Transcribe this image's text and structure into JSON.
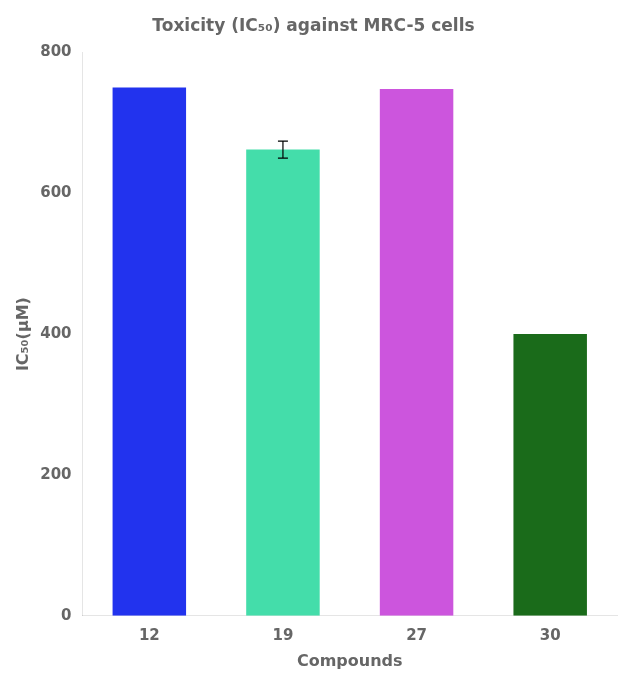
{
  "chart_data": {
    "type": "bar",
    "title": "Toxicity (IC₅₀) against MRC-5 cells",
    "xlabel": "Compounds",
    "ylabel": "IC₅₀(μM)",
    "categories": [
      "12",
      "19",
      "27",
      "30"
    ],
    "values": [
      750,
      662,
      748,
      400
    ],
    "errors": [
      0,
      12,
      0,
      0
    ],
    "colors": [
      "#2233EE",
      "#44DDAA",
      "#CC55DD",
      "#1A6B1A"
    ],
    "ylim": [
      0,
      800
    ],
    "yticks": [
      0,
      200,
      400,
      600,
      800
    ],
    "grid": false
  }
}
